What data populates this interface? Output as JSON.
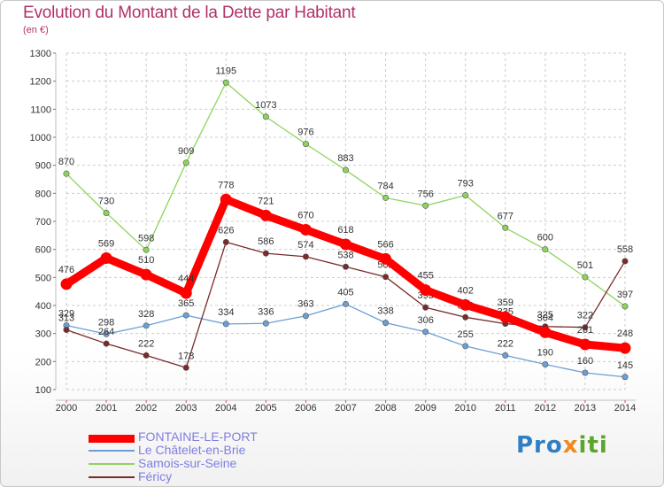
{
  "header": {
    "title": "Evolution du Montant de la Dette par Habitant",
    "subtitle": "(en €)"
  },
  "logo": {
    "text": "Proxiti",
    "part1": "Pro",
    "part2": "x",
    "part3": "iti"
  },
  "colors": {
    "title": "#b2306a",
    "grid": "#cccccc",
    "legend_text": "#7f7fe0"
  },
  "chart_data": {
    "type": "line",
    "title": "Evolution du Montant de la Dette par Habitant",
    "subtitle": "(en €)",
    "xlabel": "",
    "ylabel": "",
    "x": [
      "2000",
      "2001",
      "2002",
      "2003",
      "2004",
      "2005",
      "2006",
      "2007",
      "2008",
      "2009",
      "2010",
      "2011",
      "2012",
      "2013",
      "2014"
    ],
    "ylim": [
      100,
      1300
    ],
    "yticks": [
      100,
      200,
      300,
      400,
      500,
      600,
      700,
      800,
      900,
      1000,
      1100,
      1200,
      1300
    ],
    "grid": true,
    "legend_position": "bottom-left",
    "series": [
      {
        "name": "FONTAINE-LE-PORT",
        "color": "#ff0000",
        "values": [
          476,
          569,
          510,
          444,
          778,
          721,
          670,
          618,
          566,
          455,
          402,
          359,
          304,
          261,
          248
        ]
      },
      {
        "name": "Le Châtelet-en-Brie",
        "color": "#6b9fd6",
        "values": [
          329,
          298,
          328,
          365,
          334,
          336,
          363,
          405,
          338,
          306,
          255,
          222,
          190,
          160,
          145
        ]
      },
      {
        "name": "Samois-sur-Seine",
        "color": "#8ed45c",
        "values": [
          870,
          730,
          598,
          909,
          1195,
          1073,
          976,
          883,
          784,
          756,
          793,
          677,
          600,
          501,
          397
        ]
      },
      {
        "name": "Féricy",
        "color": "#7a2a2a",
        "values": [
          313,
          264,
          222,
          178,
          626,
          586,
          574,
          538,
          502,
          393,
          358,
          335,
          325,
          322,
          558
        ]
      }
    ]
  }
}
